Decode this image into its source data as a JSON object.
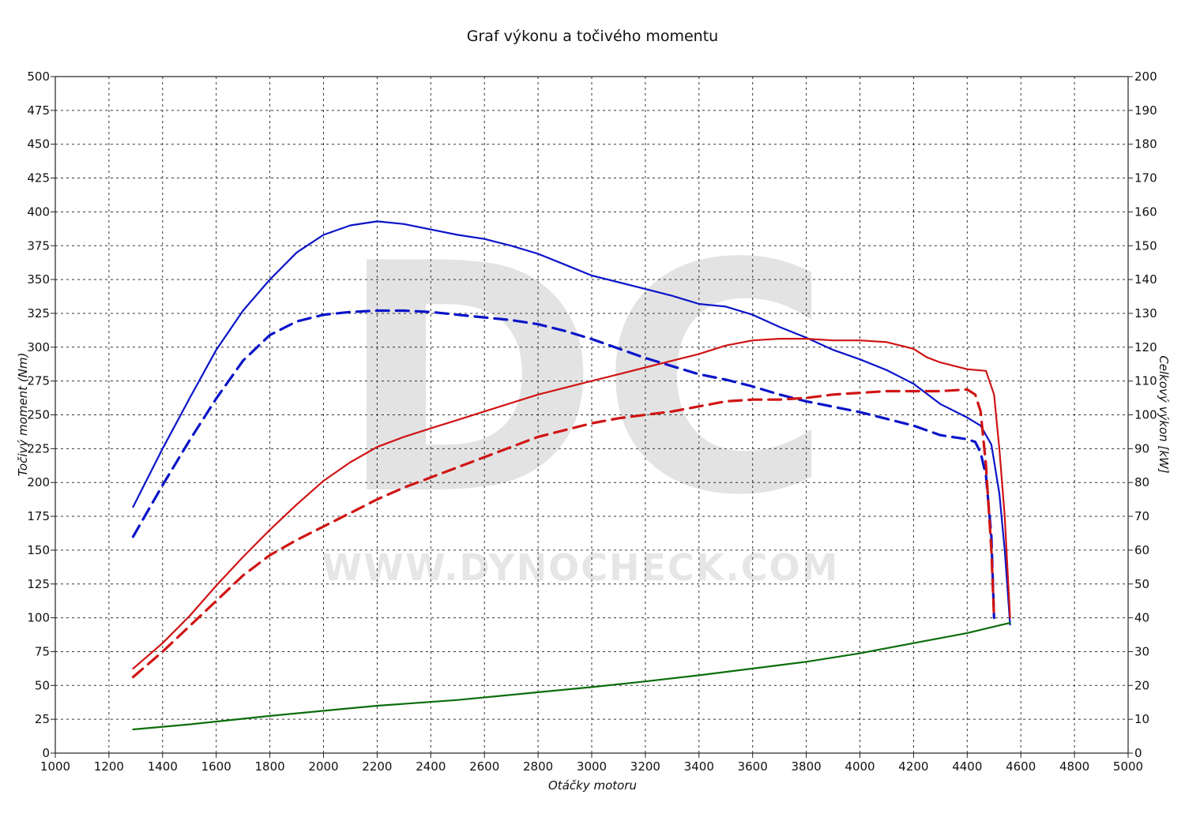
{
  "chart_data": {
    "type": "line",
    "title": "Graf výkonu a točivého momentu",
    "xlabel": "Otáčky motoru",
    "ylabel_left": "Točivý moment (Nm)",
    "ylabel_right": "Celkový výkon [kW]",
    "xlim": [
      1000,
      5000
    ],
    "ylim_left": [
      0,
      500
    ],
    "ylim_right": [
      0,
      200
    ],
    "x_ticks": [
      1000,
      1200,
      1400,
      1600,
      1800,
      2000,
      2200,
      2400,
      2600,
      2800,
      3000,
      3200,
      3400,
      3600,
      3800,
      4000,
      4200,
      4400,
      4600,
      4800,
      5000
    ],
    "y_left_ticks": [
      0,
      25,
      50,
      75,
      100,
      125,
      150,
      175,
      200,
      225,
      250,
      275,
      300,
      325,
      350,
      375,
      400,
      425,
      450,
      475,
      500
    ],
    "y_right_ticks": [
      0,
      10,
      20,
      30,
      40,
      50,
      60,
      70,
      80,
      90,
      100,
      110,
      120,
      130,
      140,
      150,
      160,
      170,
      180,
      190,
      200
    ],
    "grid": true,
    "watermark": {
      "logo": "DC",
      "url": "WWW.DYNOCHECK.COM"
    },
    "series": [
      {
        "axis": "left",
        "color": "#0a14c8",
        "dash": false,
        "points": [
          [
            1290,
            182
          ],
          [
            1400,
            225
          ],
          [
            1500,
            262
          ],
          [
            1600,
            298
          ],
          [
            1700,
            327
          ],
          [
            1800,
            350
          ],
          [
            1900,
            370
          ],
          [
            2000,
            383
          ],
          [
            2100,
            390
          ],
          [
            2200,
            393
          ],
          [
            2300,
            391
          ],
          [
            2400,
            387
          ],
          [
            2500,
            383
          ],
          [
            2600,
            380
          ],
          [
            2700,
            375
          ],
          [
            2800,
            369
          ],
          [
            2900,
            361
          ],
          [
            3000,
            353
          ],
          [
            3100,
            348
          ],
          [
            3200,
            343
          ],
          [
            3300,
            338
          ],
          [
            3400,
            332
          ],
          [
            3500,
            330
          ],
          [
            3600,
            324
          ],
          [
            3700,
            315
          ],
          [
            3800,
            307
          ],
          [
            3900,
            298
          ],
          [
            4000,
            291
          ],
          [
            4100,
            283
          ],
          [
            4200,
            273
          ],
          [
            4300,
            258
          ],
          [
            4400,
            248
          ],
          [
            4450,
            242
          ],
          [
            4490,
            228
          ],
          [
            4520,
            192
          ],
          [
            4540,
            150
          ],
          [
            4560,
            95
          ]
        ]
      },
      {
        "axis": "left",
        "color": "#0a14c8",
        "dash": true,
        "points": [
          [
            1290,
            160
          ],
          [
            1400,
            198
          ],
          [
            1500,
            231
          ],
          [
            1600,
            262
          ],
          [
            1700,
            290
          ],
          [
            1800,
            309
          ],
          [
            1900,
            319
          ],
          [
            2000,
            324
          ],
          [
            2100,
            326
          ],
          [
            2200,
            327
          ],
          [
            2300,
            327
          ],
          [
            2400,
            326
          ],
          [
            2500,
            324
          ],
          [
            2600,
            322
          ],
          [
            2700,
            320
          ],
          [
            2800,
            317
          ],
          [
            2900,
            312
          ],
          [
            3000,
            306
          ],
          [
            3100,
            299
          ],
          [
            3200,
            292
          ],
          [
            3300,
            286
          ],
          [
            3400,
            280
          ],
          [
            3500,
            276
          ],
          [
            3600,
            271
          ],
          [
            3700,
            265
          ],
          [
            3800,
            260
          ],
          [
            3900,
            256
          ],
          [
            4000,
            252
          ],
          [
            4100,
            247
          ],
          [
            4200,
            242
          ],
          [
            4300,
            235
          ],
          [
            4400,
            232
          ],
          [
            4430,
            230
          ],
          [
            4450,
            222
          ],
          [
            4470,
            205
          ],
          [
            4490,
            160
          ],
          [
            4500,
            100
          ]
        ]
      },
      {
        "axis": "right",
        "color": "#d01414",
        "dash": false,
        "points": [
          [
            1290,
            25
          ],
          [
            1400,
            32.5
          ],
          [
            1500,
            40.5
          ],
          [
            1600,
            49.5
          ],
          [
            1700,
            58
          ],
          [
            1800,
            66
          ],
          [
            1900,
            73.5
          ],
          [
            2000,
            80.5
          ],
          [
            2100,
            86
          ],
          [
            2200,
            90.5
          ],
          [
            2300,
            93.5
          ],
          [
            2400,
            96
          ],
          [
            2500,
            98.5
          ],
          [
            2600,
            101
          ],
          [
            2700,
            103.5
          ],
          [
            2800,
            106
          ],
          [
            2900,
            108
          ],
          [
            3000,
            110
          ],
          [
            3100,
            112
          ],
          [
            3200,
            114
          ],
          [
            3300,
            116
          ],
          [
            3400,
            118
          ],
          [
            3500,
            120.5
          ],
          [
            3600,
            122
          ],
          [
            3700,
            122.5
          ],
          [
            3800,
            122.5
          ],
          [
            3900,
            122
          ],
          [
            4000,
            122
          ],
          [
            4100,
            121.5
          ],
          [
            4200,
            119.5
          ],
          [
            4250,
            117
          ],
          [
            4300,
            115.5
          ],
          [
            4400,
            113.5
          ],
          [
            4470,
            113
          ],
          [
            4500,
            106
          ],
          [
            4520,
            90
          ],
          [
            4540,
            70
          ],
          [
            4560,
            40
          ]
        ]
      },
      {
        "axis": "right",
        "color": "#d01414",
        "dash": true,
        "points": [
          [
            1290,
            22.5
          ],
          [
            1400,
            30
          ],
          [
            1500,
            37.5
          ],
          [
            1600,
            45
          ],
          [
            1700,
            52.5
          ],
          [
            1800,
            58.5
          ],
          [
            1900,
            63
          ],
          [
            2000,
            67
          ],
          [
            2100,
            71
          ],
          [
            2200,
            75
          ],
          [
            2300,
            78.5
          ],
          [
            2400,
            81.5
          ],
          [
            2500,
            84.5
          ],
          [
            2600,
            87.5
          ],
          [
            2700,
            90.5
          ],
          [
            2800,
            93.5
          ],
          [
            2900,
            95.5
          ],
          [
            3000,
            97.5
          ],
          [
            3100,
            99
          ],
          [
            3200,
            100
          ],
          [
            3300,
            101
          ],
          [
            3400,
            102.5
          ],
          [
            3500,
            104
          ],
          [
            3600,
            104.5
          ],
          [
            3700,
            104.5
          ],
          [
            3800,
            105
          ],
          [
            3900,
            106
          ],
          [
            4000,
            106.5
          ],
          [
            4100,
            107
          ],
          [
            4200,
            107
          ],
          [
            4300,
            107
          ],
          [
            4400,
            107.5
          ],
          [
            4430,
            106
          ],
          [
            4450,
            101
          ],
          [
            4470,
            85
          ],
          [
            4490,
            60
          ],
          [
            4500,
            40
          ]
        ]
      },
      {
        "axis": "right",
        "color": "#0c6e0c",
        "dash": false,
        "points": [
          [
            1290,
            7
          ],
          [
            1500,
            8.5
          ],
          [
            1800,
            11
          ],
          [
            2000,
            12.5
          ],
          [
            2200,
            14
          ],
          [
            2500,
            15.7
          ],
          [
            2800,
            18
          ],
          [
            3000,
            19.5
          ],
          [
            3200,
            21.2
          ],
          [
            3400,
            23
          ],
          [
            3600,
            25
          ],
          [
            3800,
            27
          ],
          [
            4000,
            29.5
          ],
          [
            4200,
            32.5
          ],
          [
            4400,
            35.5
          ],
          [
            4560,
            38.5
          ]
        ]
      }
    ]
  }
}
